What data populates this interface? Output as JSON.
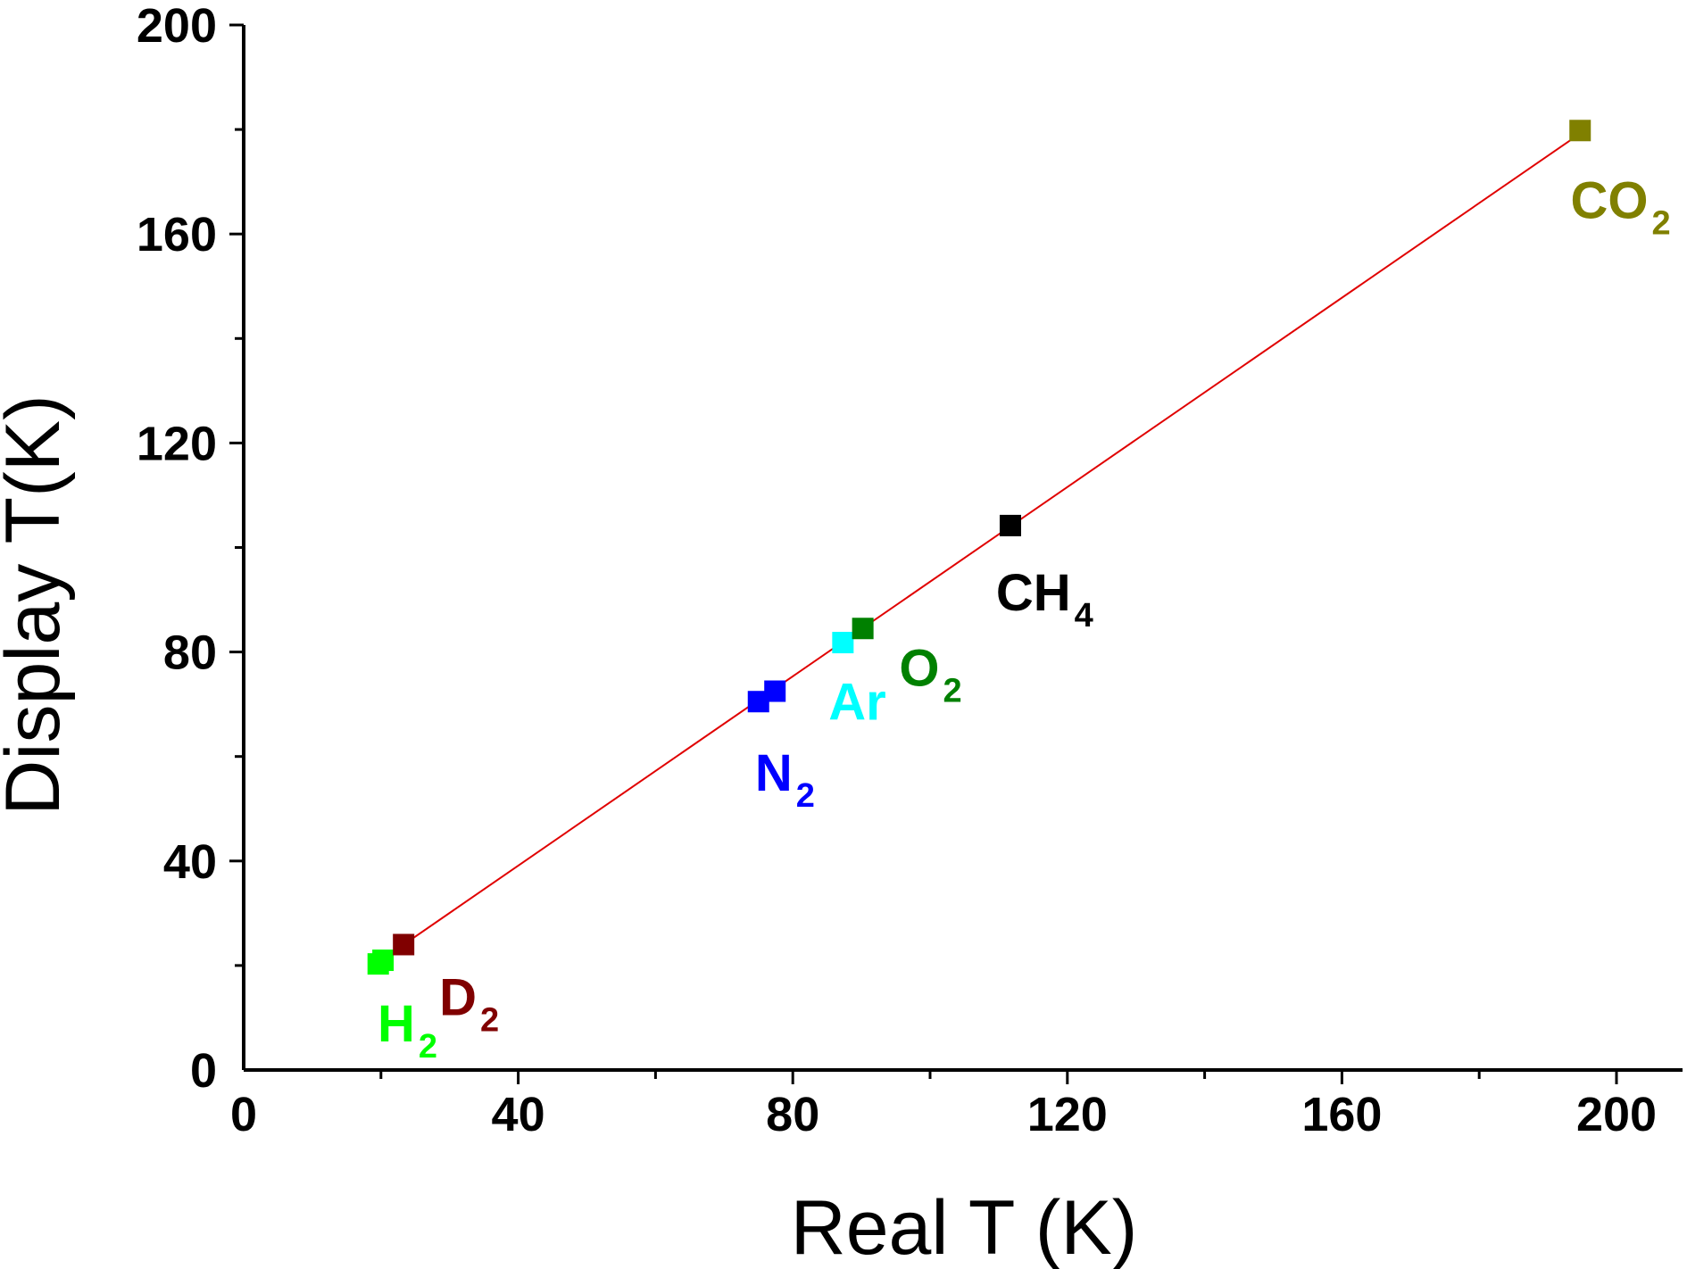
{
  "chart_data": {
    "type": "scatter",
    "title": "",
    "xlabel": "Real T (K)",
    "ylabel": "Display T(K)",
    "xlim": [
      0,
      210
    ],
    "ylim": [
      0,
      200
    ],
    "x_ticks": [
      "0",
      "40",
      "80",
      "120",
      "160",
      "200"
    ],
    "y_ticks": [
      "0",
      "40",
      "80",
      "120",
      "160",
      "200"
    ],
    "grid": false,
    "legend": "none",
    "points": [
      {
        "label": "H",
        "sub": "2",
        "x": 19.6,
        "y": 20.3,
        "color": "#00ff00"
      },
      {
        "label": "H",
        "sub": "2",
        "x": 20.3,
        "y": 21.0,
        "color": "#00ff00"
      },
      {
        "label": "D",
        "sub": "2",
        "x": 23.3,
        "y": 24.0,
        "color": "#800000"
      },
      {
        "label": "N",
        "sub": "2",
        "x": 75.0,
        "y": 70.5,
        "color": "#0000ff"
      },
      {
        "label": "N",
        "sub": "2",
        "x": 77.4,
        "y": 72.5,
        "color": "#0000ff"
      },
      {
        "label": "Ar",
        "sub": "",
        "x": 87.3,
        "y": 81.8,
        "color": "#00ffff"
      },
      {
        "label": "O",
        "sub": "2",
        "x": 90.2,
        "y": 84.5,
        "color": "#008000"
      },
      {
        "label": "CH",
        "sub": "4",
        "x": 111.7,
        "y": 104.2,
        "color": "#000000"
      },
      {
        "label": "CO",
        "sub": "2",
        "x": 194.7,
        "y": 179.8,
        "color": "#808000"
      }
    ],
    "labels": [
      {
        "text": "H",
        "sub": "2",
        "x": 19.5,
        "y": 5.5,
        "color": "#00ff00"
      },
      {
        "text": "D",
        "sub": "2",
        "x": 28.5,
        "y": 10.5,
        "color": "#800000"
      },
      {
        "text": "N",
        "sub": "2",
        "x": 74.5,
        "y": 53.5,
        "color": "#0000ff"
      },
      {
        "text": "Ar",
        "sub": "",
        "x": 85.2,
        "y": 67.0,
        "color": "#00ffff"
      },
      {
        "text": "O",
        "sub": "2",
        "x": 95.5,
        "y": 73.5,
        "color": "#008000"
      },
      {
        "text": "CH",
        "sub": "4",
        "x": 109.6,
        "y": 88.0,
        "color": "#000000"
      },
      {
        "text": "CO",
        "sub": "2",
        "x": 193.3,
        "y": 163.0,
        "color": "#808000"
      }
    ],
    "fit_line": {
      "x": [
        20.0,
        195.0
      ],
      "y": [
        21.0,
        179.5
      ],
      "color": "#e00000"
    },
    "axis_color": "#000000"
  }
}
